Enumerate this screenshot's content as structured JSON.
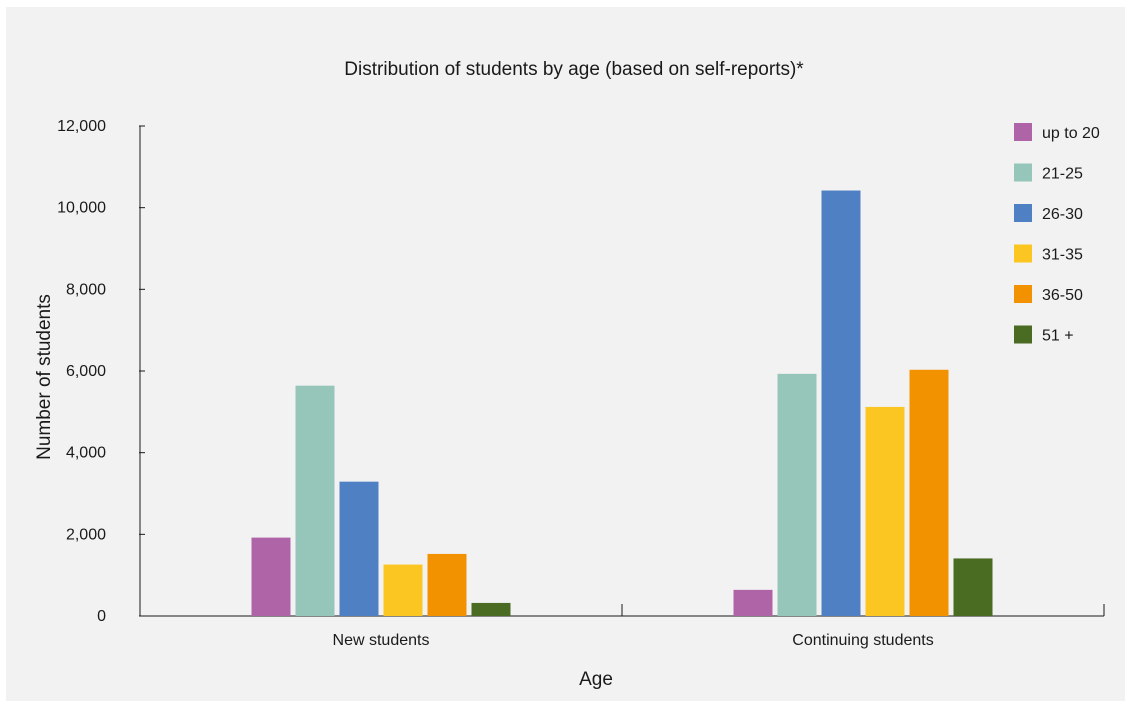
{
  "chart_data": {
    "type": "bar",
    "title": "Distribution of students by age (based on self-reports)*",
    "xlabel": "Age",
    "ylabel": "Number of students",
    "ylim": [
      0,
      12000
    ],
    "yticks": [
      0,
      2000,
      4000,
      6000,
      8000,
      10000,
      12000
    ],
    "ytick_labels": [
      "0",
      "2,000",
      "4,000",
      "6,000",
      "8,000",
      "10,000",
      "12,000"
    ],
    "categories": [
      "New students",
      "Continuing students"
    ],
    "series": [
      {
        "name": "up to 20",
        "color": "#b064a8",
        "values": [
          1920,
          640
        ]
      },
      {
        "name": "21-25",
        "color": "#96c5b9",
        "values": [
          5640,
          5930
        ]
      },
      {
        "name": "26-30",
        "color": "#5080c4",
        "values": [
          3290,
          10420
        ]
      },
      {
        "name": "31-35",
        "color": "#fcc622",
        "values": [
          1260,
          5120
        ]
      },
      {
        "name": "36-50",
        "color": "#f39200",
        "values": [
          1520,
          6030
        ]
      },
      {
        "name": "51 +",
        "color": "#4a6b22",
        "values": [
          320,
          1410
        ]
      }
    ],
    "grid": false,
    "legend_position": "top-right"
  }
}
